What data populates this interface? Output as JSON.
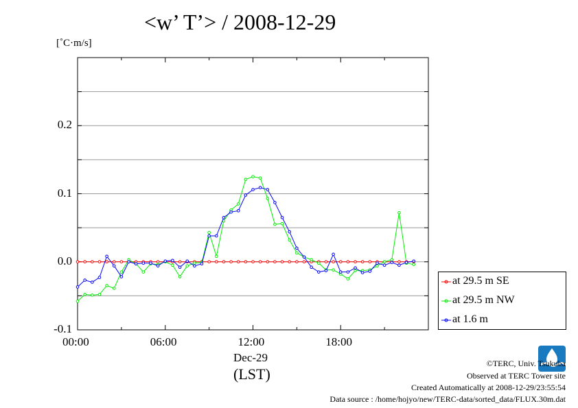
{
  "chart_data": {
    "type": "line",
    "title": "<w’ T’> / 2008-12-29",
    "ylabel": "[˚C·m/s]",
    "xlabel": "(LST)",
    "x_date_label": "Dec-29",
    "xlim": [
      0,
      24
    ],
    "ylim": [
      -0.1,
      0.3
    ],
    "x_ticks": [
      {
        "value": 0,
        "label": "00:00"
      },
      {
        "value": 6,
        "label": "06:00"
      },
      {
        "value": 12,
        "label": "12:00"
      },
      {
        "value": 18,
        "label": "18:00"
      }
    ],
    "y_ticks": [
      {
        "value": -0.1,
        "label": "-0.1"
      },
      {
        "value": 0.0,
        "label": "0.0"
      },
      {
        "value": 0.1,
        "label": "0.1"
      },
      {
        "value": 0.2,
        "label": "0.2"
      }
    ],
    "gridlines_y": [
      -0.05,
      0.0,
      0.05,
      0.1,
      0.15,
      0.2,
      0.25
    ],
    "legend_position": "lower-right outside",
    "x": [
      0,
      0.5,
      1,
      1.5,
      2,
      2.5,
      3,
      3.5,
      4,
      4.5,
      5,
      5.5,
      6,
      6.5,
      7,
      7.5,
      8,
      8.5,
      9,
      9.5,
      10,
      10.5,
      11,
      11.5,
      12,
      12.5,
      13,
      13.5,
      14,
      14.5,
      15,
      15.5,
      16,
      16.5,
      17,
      17.5,
      18,
      18.5,
      19,
      19.5,
      20,
      20.5,
      21,
      21.5,
      22,
      22.5,
      23
    ],
    "series": [
      {
        "name": "at 29.5 m SE",
        "color": "#ff0000",
        "values": [
          0,
          0,
          0,
          0,
          0,
          0,
          0,
          0,
          0,
          0,
          0,
          0,
          0,
          0,
          0,
          0,
          0,
          0,
          0,
          0,
          0,
          0,
          0,
          0,
          0,
          0,
          0,
          0,
          0,
          0,
          0,
          0,
          0,
          0,
          0,
          0,
          0,
          0,
          0,
          0,
          0,
          0,
          0,
          0,
          0,
          0,
          0
        ]
      },
      {
        "name": "at 29.5 m NW",
        "color": "#00ee00",
        "values": [
          -0.058,
          -0.048,
          -0.049,
          -0.048,
          -0.035,
          -0.039,
          -0.015,
          0.003,
          -0.003,
          -0.015,
          -0.003,
          -0.004,
          0,
          -0.005,
          -0.022,
          -0.006,
          -0.002,
          -0.001,
          0.043,
          0.008,
          0.06,
          0.076,
          0.085,
          0.121,
          0.125,
          0.123,
          0.093,
          0.055,
          0.056,
          0.032,
          0.013,
          0.007,
          0.003,
          -0.002,
          -0.012,
          -0.012,
          -0.018,
          -0.025,
          -0.013,
          -0.013,
          -0.012,
          -0.006,
          0,
          0.003,
          0.072,
          -0.002,
          -0.004
        ]
      },
      {
        "name": "at 1.6 m",
        "color": "#0000ff",
        "values": [
          -0.037,
          -0.027,
          -0.03,
          -0.023,
          0.008,
          -0.006,
          -0.022,
          0,
          -0.003,
          -0.002,
          -0.002,
          -0.006,
          0.001,
          0.002,
          -0.008,
          0.001,
          -0.006,
          -0.003,
          0.038,
          0.038,
          0.065,
          0.073,
          0.075,
          0.098,
          0.106,
          0.109,
          0.106,
          0.087,
          0.065,
          0.044,
          0.02,
          0.007,
          -0.008,
          -0.015,
          -0.013,
          0.011,
          -0.015,
          -0.015,
          -0.009,
          -0.016,
          -0.014,
          -0.002,
          -0.005,
          -0.001,
          -0.005,
          -0.001,
          0.001
        ]
      }
    ]
  },
  "credits": {
    "copyright": "©TERC, Univ. Tsukuba",
    "observed": "Observed at TERC Tower site",
    "created": "Created Automatically at 2008-12-29/23:55:54",
    "source": "Data source : /home/hojyo/new/TERC-data/sorted_data/FLUX.30m.dat",
    "logo_text": "TERC"
  }
}
